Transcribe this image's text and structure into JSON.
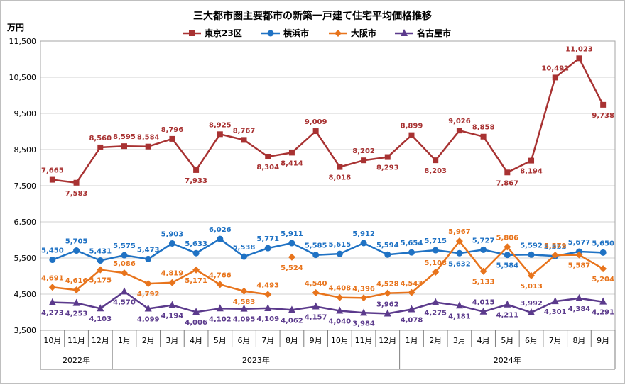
{
  "chart_data": {
    "type": "line",
    "title": "三大都市圏主要都市の新築一戸建て住宅平均価格推移",
    "ylabel": "万円",
    "ylim": [
      3500,
      11500
    ],
    "yticks": [
      3500,
      4500,
      5500,
      6500,
      7500,
      8500,
      9500,
      10500,
      11500
    ],
    "ytick_labels": [
      "3,500",
      "4,500",
      "5,500",
      "6,500",
      "7,500",
      "8,500",
      "9,500",
      "10,500",
      "11,500"
    ],
    "grid": true,
    "legend_position": "top",
    "categories": [
      "10月",
      "11月",
      "12月",
      "1月",
      "2月",
      "3月",
      "4月",
      "5月",
      "6月",
      "7月",
      "8月",
      "9月",
      "10月",
      "11月",
      "12月",
      "1月",
      "2月",
      "3月",
      "4月",
      "5月",
      "6月",
      "7月",
      "8月",
      "9月"
    ],
    "year_groups": [
      {
        "label": "2022年",
        "start": 0,
        "end": 2
      },
      {
        "label": "2023年",
        "start": 3,
        "end": 14
      },
      {
        "label": "2024年",
        "start": 15,
        "end": 23
      }
    ],
    "series": [
      {
        "name": "東京23区",
        "color": "#a83232",
        "marker": "square",
        "values": [
          7665,
          7583,
          8560,
          8595,
          8584,
          8796,
          7933,
          8925,
          8767,
          8304,
          8414,
          9009,
          8018,
          8202,
          8293,
          8899,
          8203,
          9026,
          8858,
          7867,
          8194,
          10492,
          11023,
          9738
        ],
        "labels": [
          "7,665",
          "7,583",
          "8,560",
          "8,595",
          "8,584",
          "8,796",
          "7,933",
          "8,925",
          "8,767",
          "8,304",
          "8,414",
          "9,009",
          "8,018",
          "8,202",
          "8,293",
          "8,899",
          "8,203",
          "9,026",
          "8,858",
          "7,867",
          "8,194",
          "10,492",
          "11,023",
          "9,738"
        ],
        "label_pos": [
          "above",
          "below",
          "above",
          "above",
          "above",
          "above",
          "below",
          "above",
          "above",
          "below",
          "below",
          "above",
          "below",
          "above",
          "below",
          "above",
          "below",
          "above",
          "above",
          "below",
          "below",
          "above",
          "above",
          "below"
        ]
      },
      {
        "name": "横浜市",
        "color": "#1f72c4",
        "marker": "circle",
        "values": [
          5450,
          5705,
          5431,
          5575,
          5473,
          5903,
          5633,
          6026,
          5538,
          5771,
          5911,
          5585,
          5615,
          5912,
          5594,
          5654,
          5715,
          5632,
          5727,
          5584,
          5592,
          5553,
          5677,
          5650
        ],
        "labels": [
          "5,450",
          "5,705",
          "5,431",
          "5,575",
          "5,473",
          "5,903",
          "5,633",
          "6,026",
          "5,538",
          "5,771",
          "5,911",
          "5,585",
          "5,615",
          "5,912",
          "5,594",
          "5,654",
          "5,715",
          "5,632",
          "5,727",
          "5,584",
          "5,592",
          "5,553",
          "5,677",
          "5,650"
        ],
        "label_pos": [
          "above",
          "above",
          "above",
          "above",
          "above",
          "above",
          "above",
          "above",
          "above",
          "above",
          "above",
          "above",
          "above",
          "above",
          "above",
          "above",
          "above",
          "below",
          "above",
          "below",
          "above",
          "above",
          "above",
          "above"
        ]
      },
      {
        "name": "大阪市",
        "color": "#e8741c",
        "marker": "diamond",
        "values": [
          4691,
          4616,
          5175,
          5086,
          4792,
          4819,
          5171,
          4766,
          4583,
          4493,
          5524,
          4540,
          4408,
          4396,
          4528,
          4543,
          5108,
          5967,
          5133,
          5806,
          5013,
          5579,
          5587,
          5204
        ],
        "labels": [
          "4,691",
          "4,616",
          "5,175",
          "5,086",
          "4,792",
          "4,819",
          "5,171",
          "4,766",
          "4,583",
          "4,493",
          "5,524",
          "4,540",
          "4,408",
          "4,396",
          "4,528",
          "4,543",
          "5,108",
          "5,967",
          "5,133",
          "5,806",
          "5,013",
          "5,579",
          "5,587",
          "5,204"
        ],
        "label_pos": [
          "above",
          "above",
          "below",
          "above",
          "below",
          "above",
          "below",
          "above",
          "below",
          "above",
          "below",
          "above",
          "above",
          "above",
          "above",
          "above",
          "above",
          "above",
          "below",
          "above",
          "below",
          "above",
          "below",
          "below"
        ],
        "gap_after_indices": [
          9,
          10
        ]
      },
      {
        "name": "名古屋市",
        "color": "#5b3a8c",
        "marker": "triangle",
        "values": [
          4273,
          4253,
          4103,
          4570,
          4099,
          4194,
          4006,
          4102,
          4095,
          4109,
          4062,
          4157,
          4040,
          3984,
          3962,
          4078,
          4275,
          4181,
          4015,
          4211,
          3992,
          4301,
          4384,
          4291
        ],
        "labels": [
          "4,273",
          "4,253",
          "4,103",
          "4,570",
          "4,099",
          "4,194",
          "4,006",
          "4,102",
          "4,095",
          "4,109",
          "4,062",
          "4,157",
          "4,040",
          "3,984",
          "3,962",
          "4,078",
          "4,275",
          "4,181",
          "4,015",
          "4,211",
          "3,992",
          "4,301",
          "4,384",
          "4,291"
        ],
        "label_pos": [
          "below",
          "below",
          "below",
          "below",
          "below",
          "below",
          "below",
          "below",
          "below",
          "below",
          "below",
          "below",
          "below",
          "below",
          "above",
          "below",
          "below",
          "below",
          "above",
          "below",
          "above",
          "below",
          "below",
          "below"
        ]
      }
    ]
  }
}
